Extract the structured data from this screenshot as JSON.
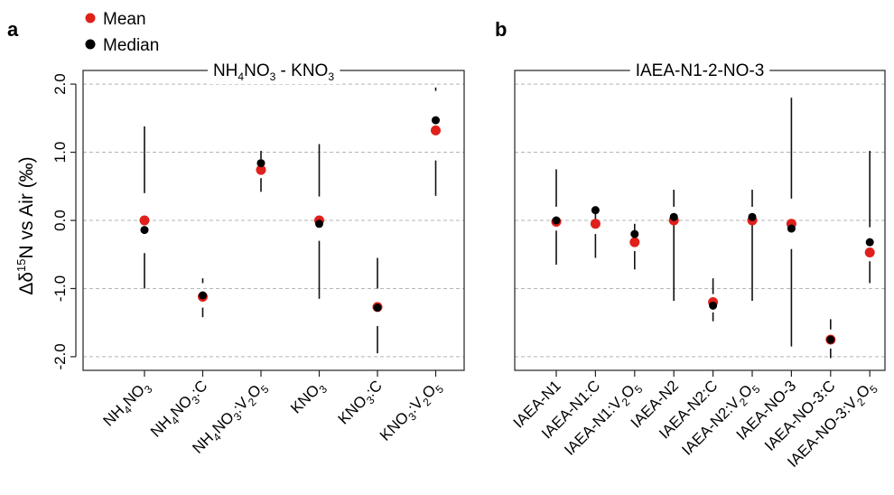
{
  "legend": {
    "position": "top-left",
    "items": [
      {
        "label": "Mean",
        "color": "#e0201b"
      },
      {
        "label": "Median",
        "color": "#000000"
      }
    ]
  },
  "colors": {
    "mean": "#e0201b",
    "median": "#000000",
    "grid": "#b5b5b5"
  },
  "y_axis": {
    "label_main": "Δδ",
    "label_sup": "15",
    "label_rest": "N vs Air (‰)",
    "ylim": [
      -2.2,
      2.2
    ],
    "ticks": [
      2.0,
      1.0,
      0.0,
      -1.0,
      -2.0
    ],
    "tick_labels": [
      "2.0",
      "1.0",
      "0.0",
      "-1.0",
      "-2.0"
    ]
  },
  "chart_data": [
    {
      "panel_letter": "a",
      "type": "scatter",
      "title_parts": [
        {
          "t": "NH",
          "s": "n"
        },
        {
          "t": "4",
          "s": "sub"
        },
        {
          "t": "NO",
          "s": "n"
        },
        {
          "t": "3",
          "s": "sub"
        },
        {
          "t": " - KNO",
          "s": "n"
        },
        {
          "t": "3",
          "s": "sub"
        }
      ],
      "grid": true,
      "categories": [
        [
          {
            "t": "NH",
            "s": "n"
          },
          {
            "t": "4",
            "s": "sub"
          },
          {
            "t": "NO",
            "s": "n"
          },
          {
            "t": "3",
            "s": "sub"
          }
        ],
        [
          {
            "t": "NH",
            "s": "n"
          },
          {
            "t": "4",
            "s": "sub"
          },
          {
            "t": "NO",
            "s": "n"
          },
          {
            "t": "3",
            "s": "sub"
          },
          {
            "t": ":C",
            "s": "n"
          }
        ],
        [
          {
            "t": "NH",
            "s": "n"
          },
          {
            "t": "4",
            "s": "sub"
          },
          {
            "t": "NO",
            "s": "n"
          },
          {
            "t": "3",
            "s": "sub"
          },
          {
            "t": ":V",
            "s": "n"
          },
          {
            "t": "2",
            "s": "sub"
          },
          {
            "t": "O",
            "s": "n"
          },
          {
            "t": "5",
            "s": "sub"
          }
        ],
        [
          {
            "t": "KNO",
            "s": "n"
          },
          {
            "t": "3",
            "s": "sub"
          }
        ],
        [
          {
            "t": "KNO",
            "s": "n"
          },
          {
            "t": "3",
            "s": "sub"
          },
          {
            "t": ":C",
            "s": "n"
          }
        ],
        [
          {
            "t": "KNO",
            "s": "n"
          },
          {
            "t": "3",
            "s": "sub"
          },
          {
            "t": ":V",
            "s": "n"
          },
          {
            "t": "2",
            "s": "sub"
          },
          {
            "t": "O",
            "s": "n"
          },
          {
            "t": "5",
            "s": "sub"
          }
        ]
      ],
      "mean": [
        0.0,
        -1.12,
        0.74,
        0.0,
        -1.27,
        1.32
      ],
      "median": [
        -0.14,
        -1.1,
        0.84,
        -0.05,
        -1.28,
        1.47
      ],
      "whisker_upper": [
        [
          0.4,
          1.38
        ],
        [
          -0.85,
          -0.92
        ],
        [
          0.9,
          1.02
        ],
        [
          0.35,
          1.12
        ],
        [
          -0.55,
          -1.0
        ],
        [
          0.36,
          0.88
        ]
      ],
      "whisker_lower": [
        [
          -1.0,
          -0.48
        ],
        [
          -1.42,
          -1.28
        ],
        [
          0.42,
          0.62
        ],
        [
          -1.15,
          -0.3
        ],
        [
          -1.95,
          -1.55
        ],
        [
          1.9,
          1.95
        ]
      ]
    },
    {
      "panel_letter": "b",
      "type": "scatter",
      "title_parts": [
        {
          "t": "IAEA-N1-2-NO-3",
          "s": "n"
        }
      ],
      "grid": true,
      "categories": [
        [
          {
            "t": "IAEA-N1",
            "s": "n"
          }
        ],
        [
          {
            "t": "IAEA-N1:C",
            "s": "n"
          }
        ],
        [
          {
            "t": "IAEA-N1:V",
            "s": "n"
          },
          {
            "t": "2",
            "s": "sub"
          },
          {
            "t": "O",
            "s": "n"
          },
          {
            "t": "5",
            "s": "sub"
          }
        ],
        [
          {
            "t": "IAEA-N2",
            "s": "n"
          }
        ],
        [
          {
            "t": "IAEA-N2:C",
            "s": "n"
          }
        ],
        [
          {
            "t": "IAEA-N2:V",
            "s": "n"
          },
          {
            "t": "2",
            "s": "sub"
          },
          {
            "t": "O",
            "s": "n"
          },
          {
            "t": "5",
            "s": "sub"
          }
        ],
        [
          {
            "t": "IAEA-NO-3",
            "s": "n"
          }
        ],
        [
          {
            "t": "IAEA-NO-3:C",
            "s": "n"
          }
        ],
        [
          {
            "t": "IAEA-NO-3:V",
            "s": "n"
          },
          {
            "t": "2",
            "s": "sub"
          },
          {
            "t": "O",
            "s": "n"
          },
          {
            "t": "5",
            "s": "sub"
          }
        ]
      ],
      "mean": [
        -0.02,
        -0.05,
        -0.32,
        0.0,
        -1.2,
        0.0,
        -0.05,
        -1.75,
        -0.47
      ],
      "median": [
        0.0,
        0.15,
        -0.2,
        0.05,
        -1.25,
        0.05,
        -0.12,
        -1.75,
        -0.32
      ],
      "whisker_upper": [
        [
          0.2,
          0.75
        ],
        [
          0.0,
          0.15
        ],
        [
          -0.05,
          -0.2
        ],
        [
          0.2,
          0.45
        ],
        [
          -0.85,
          -1.08
        ],
        [
          0.2,
          0.45
        ],
        [
          0.32,
          1.8
        ],
        [
          -1.45,
          -1.6
        ],
        [
          -0.1,
          1.02
        ]
      ],
      "whisker_lower": [
        [
          -0.65,
          -0.15
        ],
        [
          -0.55,
          -0.2
        ],
        [
          -0.72,
          -0.45
        ],
        [
          -1.18,
          -0.05
        ],
        [
          -1.48,
          -1.35
        ],
        [
          -1.18,
          -0.05
        ],
        [
          -1.85,
          -0.42
        ],
        [
          -2.02,
          -1.88
        ],
        [
          -0.92,
          -0.6
        ]
      ]
    }
  ]
}
